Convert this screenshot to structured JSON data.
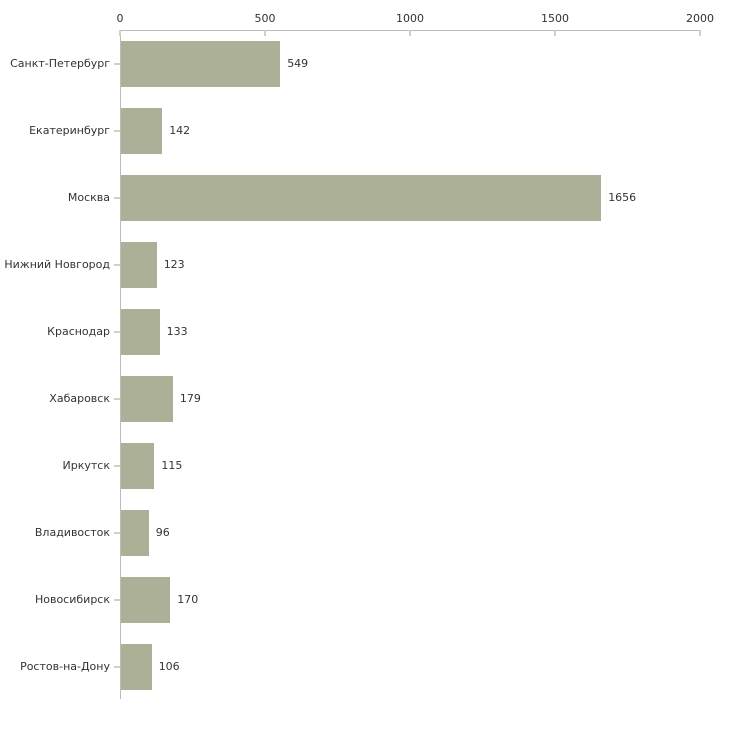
{
  "chart_data": {
    "type": "bar",
    "orientation": "horizontal",
    "categories": [
      "Санкт-Петербург",
      "Екатеринбург",
      "Москва",
      "Нижний Новгород",
      "Краснодар",
      "Хабаровск",
      "Иркутск",
      "Владивосток",
      "Новосибирск",
      "Ростов-на-Дону"
    ],
    "values": [
      549,
      142,
      1656,
      123,
      133,
      179,
      115,
      96,
      170,
      106
    ],
    "x_ticks": [
      0,
      500,
      1000,
      1500,
      2000
    ],
    "xlim": [
      0,
      2000
    ],
    "grid": false,
    "legend": false,
    "title": "",
    "xlabel": "",
    "ylabel": "",
    "colors": {
      "bar": "#abb097",
      "axis_line": "#bbbbbb",
      "tick_mark": "#d4d1b4",
      "text": "#333333",
      "background": "#ffffff"
    }
  }
}
